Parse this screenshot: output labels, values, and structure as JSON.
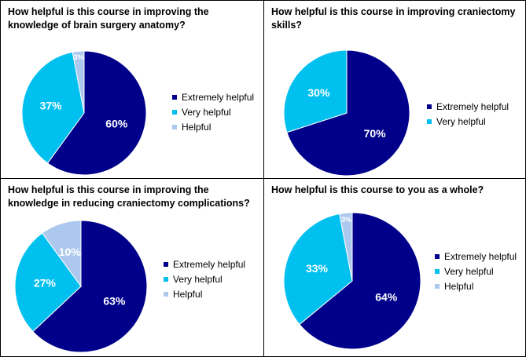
{
  "chart_data": [
    {
      "type": "pie",
      "title": "How helpful is this course in improving the knowledge of brain surgery anatomy?",
      "categories": [
        "Extremely helpful",
        "Very helpful",
        "Helpful"
      ],
      "values": [
        60,
        37,
        3
      ],
      "labels": [
        "60%",
        "37%",
        "3%"
      ],
      "colors": [
        "#00008B",
        "#00C0F0",
        "#ADC8EE"
      ],
      "legend": "right"
    },
    {
      "type": "pie",
      "title": "How helpful is this course in improving craniectomy skills?",
      "categories": [
        "Extremely helpful",
        "Very helpful"
      ],
      "values": [
        70,
        30
      ],
      "labels": [
        "70%",
        "30%"
      ],
      "colors": [
        "#00008B",
        "#00C0F0"
      ],
      "legend": "right"
    },
    {
      "type": "pie",
      "title": "How helpful is this course in improving the knowledge in reducing craniectomy complications?",
      "categories": [
        "Extremely helpful",
        "Very helpful",
        "Helpful"
      ],
      "values": [
        63,
        27,
        10
      ],
      "labels": [
        "63%",
        "27%",
        "10%"
      ],
      "colors": [
        "#00008B",
        "#00C0F0",
        "#ADC8EE"
      ],
      "legend": "right"
    },
    {
      "type": "pie",
      "title": "How helpful is this course to you as a whole?",
      "categories": [
        "Extremely helpful",
        "Very helpful",
        "Helpful"
      ],
      "values": [
        64,
        33,
        3
      ],
      "labels": [
        "64%",
        "33%",
        "3%"
      ],
      "colors": [
        "#00008B",
        "#00C0F0",
        "#ADC8EE"
      ],
      "legend": "right"
    }
  ]
}
